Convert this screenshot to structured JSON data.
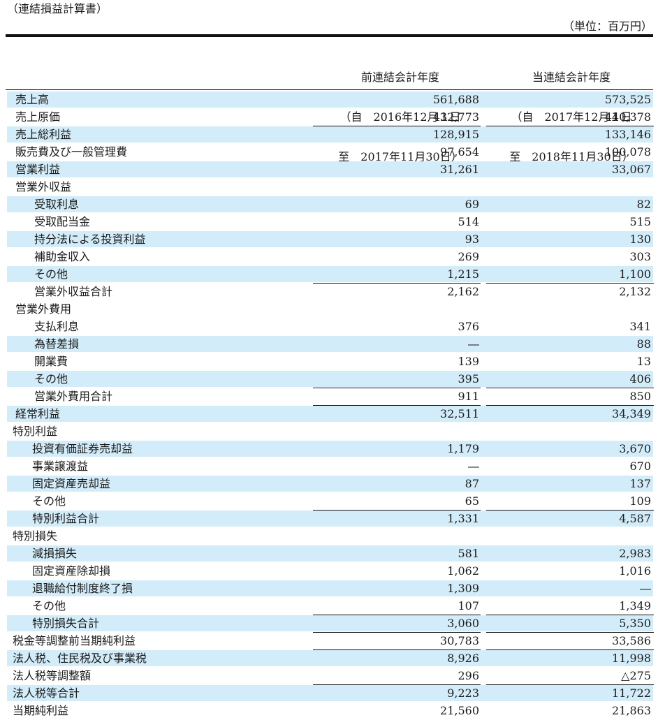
{
  "title": "（連結損益計算書）",
  "unit": "（単位：百万円）",
  "columns": {
    "prev": {
      "label": "前連結会計年度",
      "from": "（自　2016年12月１日",
      "to": "至　2017年11月30日）"
    },
    "curr": {
      "label": "当連結会計年度",
      "from": "（自　2017年12月１日",
      "to": "至　2018年11月30日）"
    }
  },
  "rows": [
    {
      "label": "売上高",
      "prev": "561,688",
      "curr": "573,525"
    },
    {
      "label": "売上原価",
      "prev": "432,773",
      "curr": "440,378"
    },
    {
      "label": "売上総利益",
      "prev": "128,915",
      "curr": "133,146"
    },
    {
      "label": "販売費及び一般管理費",
      "prev": "97,654",
      "curr": "100,078"
    },
    {
      "label": "営業利益",
      "prev": "31,261",
      "curr": "33,067"
    },
    {
      "label": "営業外収益",
      "prev": "",
      "curr": ""
    },
    {
      "label": "受取利息",
      "prev": "69",
      "curr": "82"
    },
    {
      "label": "受取配当金",
      "prev": "514",
      "curr": "515"
    },
    {
      "label": "持分法による投資利益",
      "prev": "93",
      "curr": "130"
    },
    {
      "label": "補助金収入",
      "prev": "269",
      "curr": "303"
    },
    {
      "label": "その他",
      "prev": "1,215",
      "curr": "1,100"
    },
    {
      "label": "営業外収益合計",
      "prev": "2,162",
      "curr": "2,132"
    },
    {
      "label": "営業外費用",
      "prev": "",
      "curr": ""
    },
    {
      "label": "支払利息",
      "prev": "376",
      "curr": "341"
    },
    {
      "label": "為替差損",
      "prev": "―",
      "curr": "88"
    },
    {
      "label": "開業費",
      "prev": "139",
      "curr": "13"
    },
    {
      "label": "その他",
      "prev": "395",
      "curr": "406"
    },
    {
      "label": "営業外費用合計",
      "prev": "911",
      "curr": "850"
    },
    {
      "label": "経常利益",
      "prev": "32,511",
      "curr": "34,349"
    },
    {
      "label": "特別利益",
      "prev": "",
      "curr": ""
    },
    {
      "label": "投資有価証券売却益",
      "prev": "1,179",
      "curr": "3,670"
    },
    {
      "label": "事業譲渡益",
      "prev": "―",
      "curr": "670"
    },
    {
      "label": "固定資産売却益",
      "prev": "87",
      "curr": "137"
    },
    {
      "label": "その他",
      "prev": "65",
      "curr": "109"
    },
    {
      "label": "特別利益合計",
      "prev": "1,331",
      "curr": "4,587"
    },
    {
      "label": "特別損失",
      "prev": "",
      "curr": ""
    },
    {
      "label": "減損損失",
      "prev": "581",
      "curr": "2,983"
    },
    {
      "label": "固定資産除却損",
      "prev": "1,062",
      "curr": "1,016"
    },
    {
      "label": "退職給付制度終了損",
      "prev": "1,309",
      "curr": "―"
    },
    {
      "label": "その他",
      "prev": "107",
      "curr": "1,349"
    },
    {
      "label": "特別損失合計",
      "prev": "3,060",
      "curr": "5,350"
    },
    {
      "label": "税金等調整前当期純利益",
      "prev": "30,783",
      "curr": "33,586"
    },
    {
      "label": "法人税、住民税及び事業税",
      "prev": "8,926",
      "curr": "11,998"
    },
    {
      "label": "法人税等調整額",
      "prev": "296",
      "curr": "△275"
    },
    {
      "label": "法人税等合計",
      "prev": "9,223",
      "curr": "11,722"
    },
    {
      "label": "当期純利益",
      "prev": "21,560",
      "curr": "21,863"
    }
  ]
}
